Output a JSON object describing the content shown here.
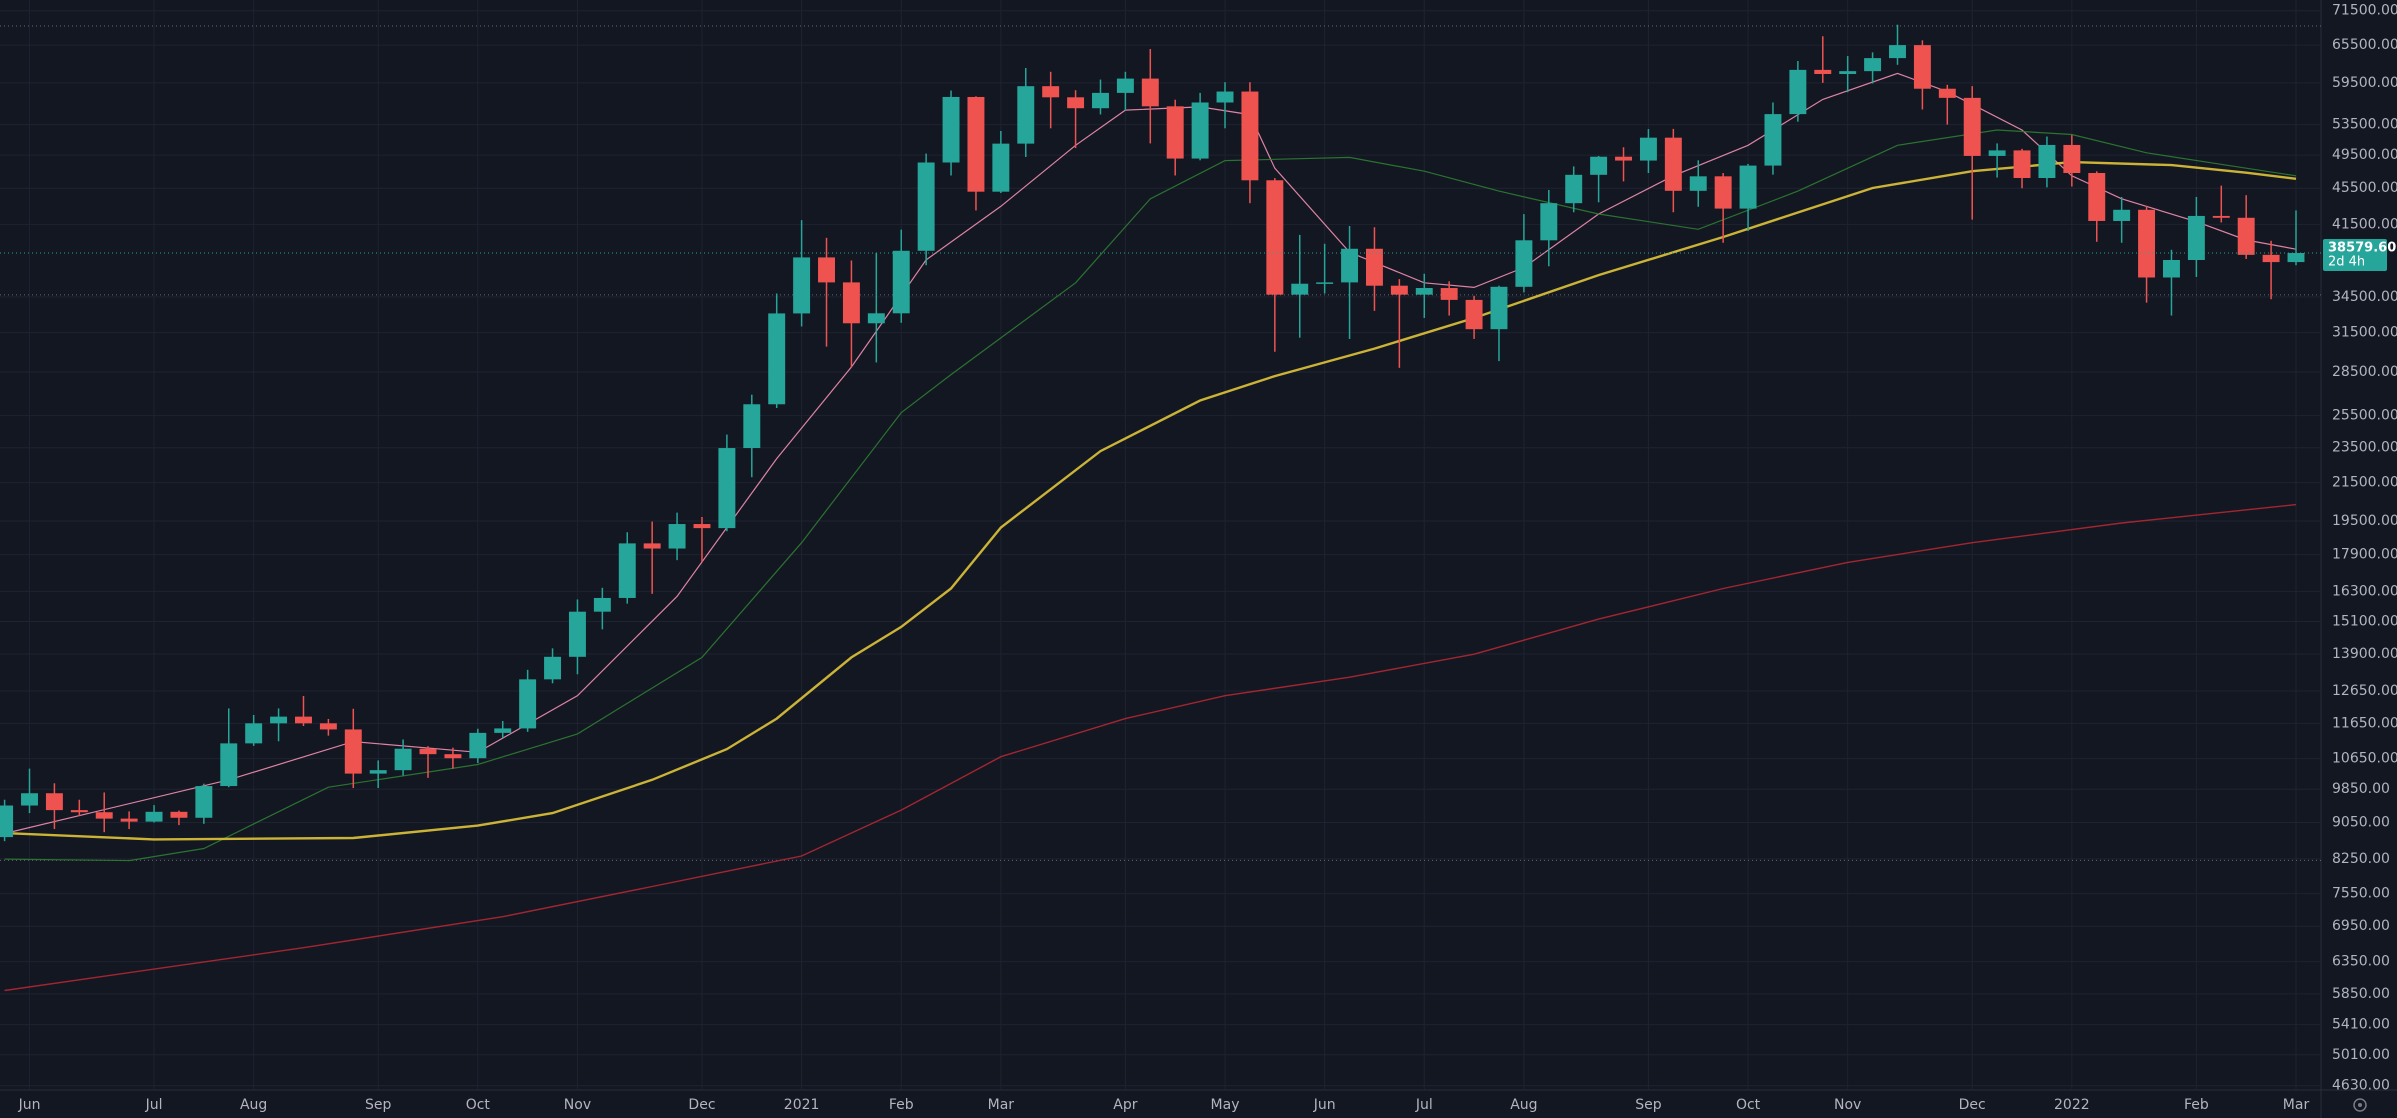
{
  "chart_data": {
    "type": "candlestick",
    "log": true,
    "grid": true,
    "up_color": "#26a69a",
    "down_color": "#ef5350",
    "categories": [
      null,
      "Jun",
      null,
      null,
      null,
      null,
      "Jul",
      null,
      null,
      null,
      "Aug",
      null,
      null,
      null,
      null,
      "Sep",
      null,
      null,
      null,
      "Oct",
      null,
      null,
      null,
      "Nov",
      null,
      null,
      null,
      null,
      "Dec",
      null,
      null,
      null,
      "2021",
      null,
      null,
      null,
      "Feb",
      null,
      null,
      null,
      "Mar",
      null,
      null,
      null,
      null,
      "Apr",
      null,
      null,
      null,
      "May",
      null,
      null,
      null,
      "Jun",
      null,
      null,
      null,
      "Jul",
      null,
      null,
      null,
      "Aug",
      null,
      null,
      null,
      null,
      "Sep",
      null,
      null,
      null,
      "Oct",
      null,
      null,
      null,
      "Nov",
      null,
      null,
      null,
      null,
      "Dec",
      null,
      null,
      null,
      "2022",
      null,
      null,
      null,
      null,
      "Feb",
      null,
      null,
      null,
      "Mar"
    ],
    "open": [
      8720,
      9450,
      9750,
      9340,
      9290,
      9140,
      9070,
      9300,
      9160,
      9930,
      11070,
      11650,
      11850,
      11650,
      11470,
      10250,
      10340,
      10920,
      10770,
      10660,
      11370,
      11500,
      13030,
      13800,
      15480,
      16030,
      18420,
      18180,
      19350,
      19150,
      23480,
      26250,
      33080,
      38150,
      35800,
      32260,
      33090,
      38800,
      48580,
      57400,
      45100,
      50970,
      59000,
      57350,
      55780,
      58000,
      60150,
      56050,
      49070,
      56600,
      58200,
      46430,
      34700,
      35680,
      35800,
      39000,
      35500,
      34700,
      35290,
      34240,
      31780,
      35400,
      39850,
      43800,
      47080,
      49300,
      48820,
      51750,
      45200,
      46900,
      43200,
      48200,
      54950,
      61500,
      60860,
      61300,
      63370,
      65500,
      58620,
      57270,
      49400,
      50100,
      46700,
      50800,
      47300,
      41860,
      43070,
      36250,
      37900,
      42400,
      42200,
      38400,
      37700
    ],
    "high": [
      9590,
      10380,
      10000,
      9590,
      9770,
      9310,
      9460,
      9330,
      9990,
      12100,
      11900,
      12100,
      12490,
      11780,
      12090,
      10600,
      11180,
      10990,
      10950,
      11490,
      11720,
      13350,
      14100,
      15970,
      16450,
      18950,
      19470,
      19920,
      19700,
      24300,
      26900,
      34800,
      41950,
      40100,
      37850,
      38600,
      40950,
      49700,
      58350,
      57500,
      52640,
      61800,
      61200,
      58400,
      60000,
      61200,
      64850,
      57000,
      58000,
      59600,
      59600,
      46680,
      40400,
      39500,
      41330,
      41200,
      36100,
      36600,
      35900,
      34600,
      35500,
      42600,
      45300,
      48100,
      49400,
      50500,
      52900,
      52920,
      48850,
      47300,
      48400,
      56600,
      62900,
      67000,
      63700,
      64300,
      69000,
      66300,
      59200,
      59000,
      51000,
      50300,
      51900,
      52100,
      47500,
      44500,
      43500,
      38900,
      44500,
      45800,
      44700,
      39800,
      43000
    ],
    "low": [
      8630,
      9270,
      8900,
      9200,
      8830,
      8900,
      9050,
      8990,
      9020,
      9900,
      11000,
      11130,
      11570,
      11290,
      9880,
      9880,
      10200,
      10140,
      10380,
      10530,
      11220,
      11400,
      12900,
      13200,
      14800,
      15800,
      16200,
      17650,
      17570,
      19000,
      21800,
      26000,
      32000,
      30400,
      28850,
      29200,
      32300,
      37400,
      47000,
      43000,
      44950,
      49270,
      53000,
      50400,
      54900,
      55470,
      51000,
      47000,
      48850,
      53000,
      43800,
      30000,
      31100,
      34800,
      31000,
      33300,
      28800,
      32700,
      32900,
      31000,
      29300,
      34900,
      37300,
      42800,
      43900,
      46300,
      47300,
      42800,
      43400,
      39600,
      40800,
      47100,
      53900,
      59500,
      58100,
      59400,
      62300,
      55600,
      53500,
      42000,
      46750,
      45500,
      45600,
      45700,
      39700,
      39600,
      34000,
      32900,
      36300,
      41700,
      38000,
      34300,
      37400
    ],
    "close": [
      9450,
      9750,
      9340,
      9290,
      9140,
      9070,
      9300,
      9160,
      9930,
      11070,
      11650,
      11850,
      11650,
      11470,
      10250,
      10340,
      10920,
      10770,
      10660,
      11370,
      11500,
      13030,
      13800,
      15480,
      16030,
      18420,
      18180,
      19350,
      19150,
      23480,
      26250,
      33080,
      38150,
      35800,
      32260,
      33090,
      38800,
      48580,
      57400,
      45100,
      50970,
      59000,
      57350,
      55780,
      58000,
      60150,
      56050,
      49070,
      56600,
      58200,
      46430,
      34700,
      35680,
      35800,
      39000,
      35500,
      34700,
      35290,
      34240,
      31780,
      35400,
      39850,
      43800,
      47080,
      49300,
      48820,
      51750,
      45200,
      46900,
      43200,
      48200,
      54950,
      61500,
      60860,
      61300,
      63370,
      65500,
      58620,
      57270,
      49400,
      50100,
      46700,
      50800,
      47300,
      41860,
      43070,
      36250,
      37900,
      42400,
      42200,
      38400,
      37700,
      38579.6
    ],
    "last_price_label": "38579.60",
    "countdown": "2d 4h",
    "series": [
      {
        "color": "#f48fb1",
        "x": [
          0,
          9,
          14,
          19,
          23,
          27,
          31,
          34,
          37,
          40,
          43,
          45,
          48,
          50,
          51,
          54,
          57,
          59,
          61,
          64,
          67,
          70,
          73,
          76,
          78,
          81,
          83,
          85,
          88,
          90,
          92
        ],
        "values": [
          8800,
          10090,
          11120,
          10820,
          12500,
          16100,
          22860,
          28860,
          37910,
          43450,
          50760,
          55520,
          55970,
          54880,
          47880,
          38650,
          35760,
          35350,
          37180,
          42610,
          46960,
          50760,
          57050,
          60950,
          58170,
          52770,
          46960,
          44290,
          41780,
          39880,
          38960
        ]
      },
      {
        "color": "#2e7d32",
        "x": [
          0,
          5,
          8,
          13,
          19,
          23,
          28,
          32,
          36,
          38,
          43,
          46,
          49,
          54,
          57,
          60,
          64,
          68,
          72,
          76,
          80,
          83,
          86,
          90,
          92
        ],
        "values": [
          8245,
          8213,
          8470,
          9900,
          10490,
          11340,
          13780,
          18450,
          25690,
          28310,
          35760,
          44290,
          48820,
          49210,
          47510,
          45170,
          42610,
          40980,
          45170,
          50760,
          52770,
          52170,
          49790,
          47880,
          46960
        ]
      },
      {
        "color": "#e0c43a",
        "x": [
          0,
          6,
          14,
          19,
          22,
          26,
          29,
          31,
          34,
          36,
          38,
          40,
          44,
          48,
          51,
          55,
          59,
          64,
          69,
          75,
          79,
          83,
          87,
          90,
          92
        ],
        "values": [
          8810,
          8670,
          8700,
          8980,
          9270,
          10090,
          10910,
          11790,
          13780,
          14890,
          16420,
          19180,
          23300,
          26500,
          28200,
          30250,
          32700,
          36470,
          40190,
          45520,
          47510,
          48630,
          48260,
          47330,
          46600
        ]
      },
      {
        "color": "#b22833",
        "x": [
          0,
          12,
          20,
          26,
          32,
          36,
          40,
          45,
          49,
          54,
          59,
          64,
          69,
          74,
          79,
          85,
          92
        ],
        "values": [
          5900,
          6580,
          7120,
          7690,
          8310,
          9340,
          10700,
          11790,
          12500,
          13100,
          13890,
          15190,
          16420,
          17550,
          18450,
          19400,
          20330
        ]
      }
    ],
    "hlines": [
      68770,
      34680,
      8217
    ],
    "ylim": [
      4580,
      73475
    ],
    "yticks": [
      {
        "value": 71500,
        "label": "71500.00"
      },
      {
        "value": 65500,
        "label": "65500.00"
      },
      {
        "value": 59500,
        "label": "59500.00"
      },
      {
        "value": 53500,
        "label": "53500.00"
      },
      {
        "value": 49500,
        "label": "49500.00"
      },
      {
        "value": 45500,
        "label": "45500.00"
      },
      {
        "value": 41500,
        "label": "41500.00"
      },
      {
        "value": 34500,
        "label": "34500.00"
      },
      {
        "value": 31500,
        "label": "31500.00"
      },
      {
        "value": 28500,
        "label": "28500.00"
      },
      {
        "value": 25500,
        "label": "25500.00"
      },
      {
        "value": 23500,
        "label": "23500.00"
      },
      {
        "value": 21500,
        "label": "21500.00"
      },
      {
        "value": 19500,
        "label": "19500.00"
      },
      {
        "value": 17900,
        "label": "17900.00"
      },
      {
        "value": 16300,
        "label": "16300.00"
      },
      {
        "value": 15100,
        "label": "15100.00"
      },
      {
        "value": 13900,
        "label": "13900.00"
      },
      {
        "value": 12650,
        "label": "12650.00"
      },
      {
        "value": 11650,
        "label": "11650.00"
      },
      {
        "value": 10650,
        "label": "10650.00"
      },
      {
        "value": 9850,
        "label": "9850.00"
      },
      {
        "value": 9050,
        "label": "9050.00"
      },
      {
        "value": 8250,
        "label": "8250.00"
      },
      {
        "value": 7550,
        "label": "7550.00"
      },
      {
        "value": 6950,
        "label": "6950.00"
      },
      {
        "value": 6350,
        "label": "6350.00"
      },
      {
        "value": 5850,
        "label": "5850.00"
      },
      {
        "value": 5410,
        "label": "5410.00"
      },
      {
        "value": 5010,
        "label": "5010.00"
      },
      {
        "value": 4630,
        "label": "4630.00"
      }
    ]
  }
}
